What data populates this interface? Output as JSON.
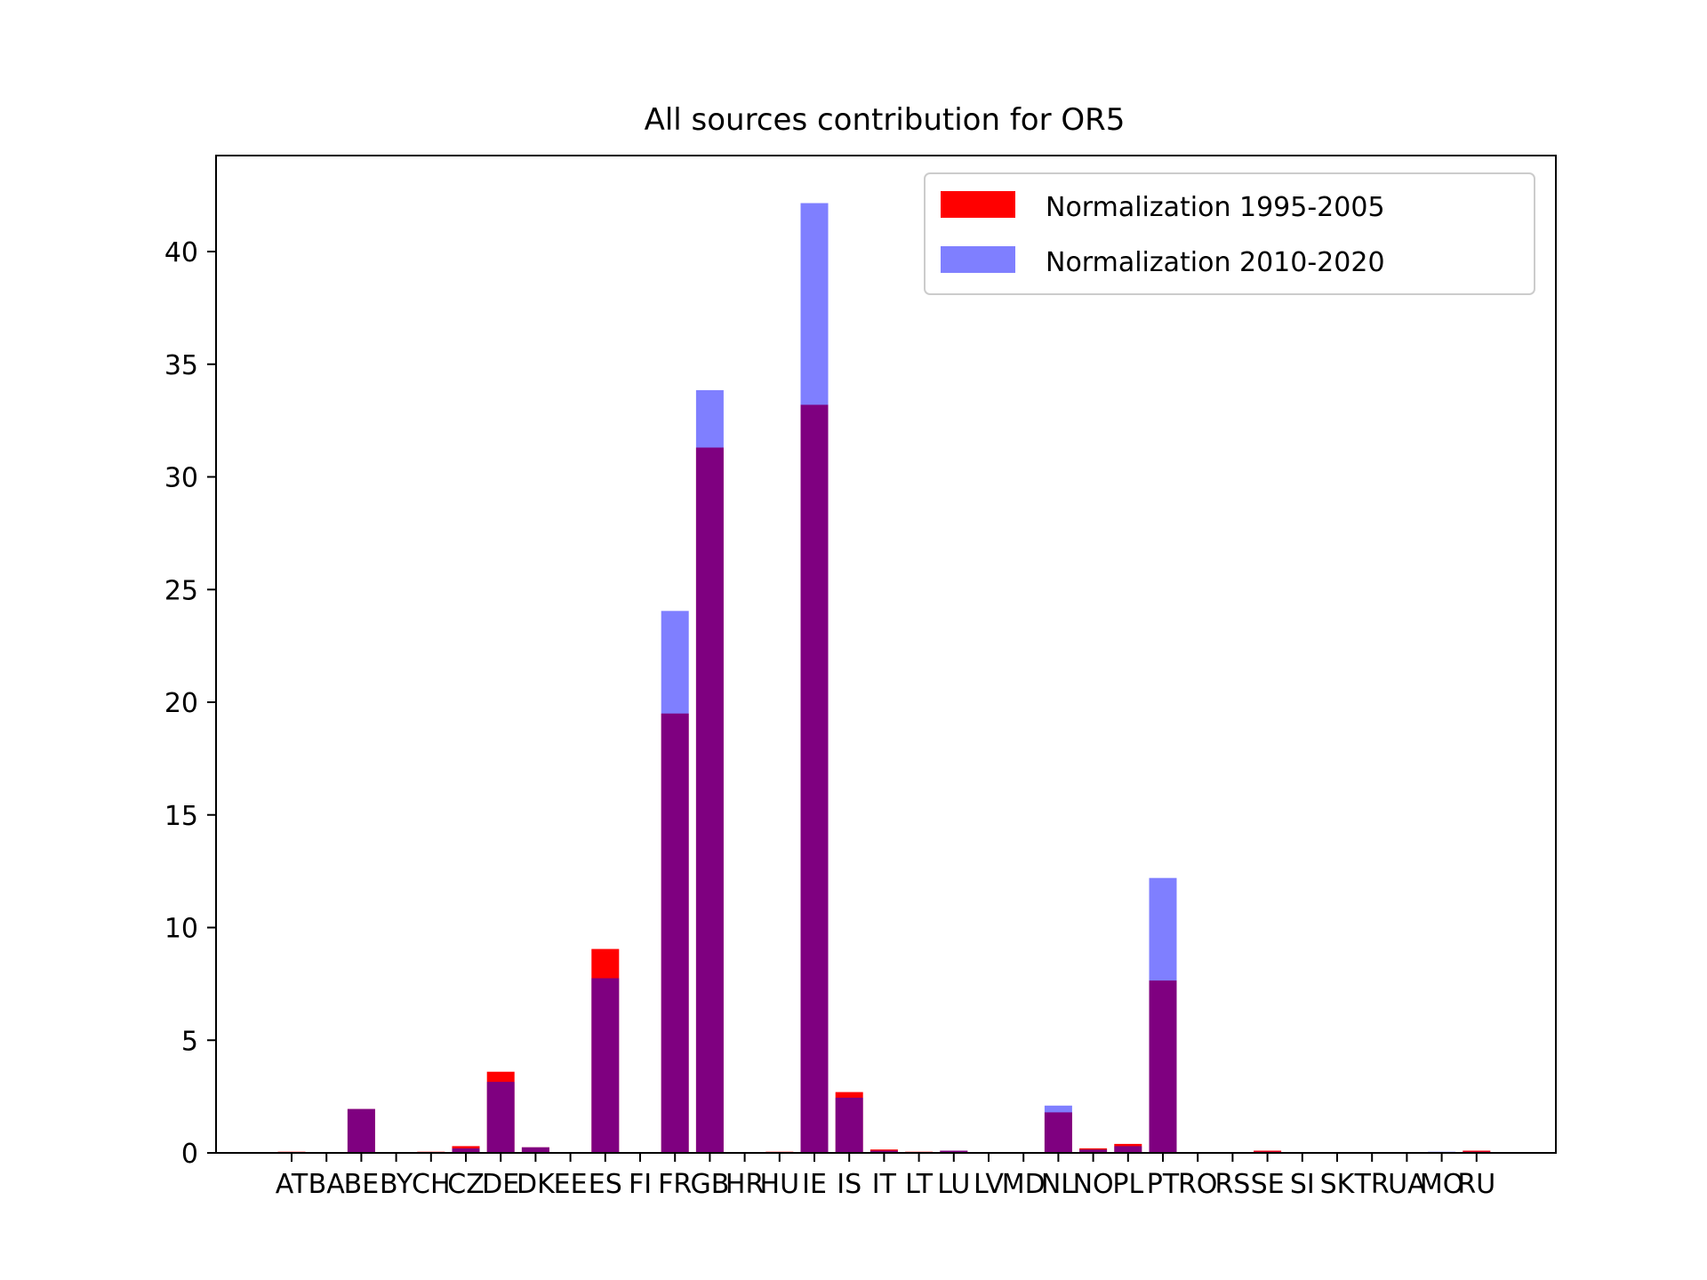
{
  "chart_data": {
    "type": "bar",
    "title": "All sources contribution for OR5",
    "xlabel": "",
    "ylabel": "",
    "ylim": [
      0,
      44
    ],
    "yticks": [
      0,
      5,
      10,
      15,
      20,
      25,
      30,
      35,
      40
    ],
    "grid": false,
    "legend_position": "top-right",
    "overlap_color": "#800080",
    "categories": [
      "AT",
      "BA",
      "BE",
      "BY",
      "CH",
      "CZ",
      "DE",
      "DK",
      "EE",
      "ES",
      "FI",
      "FR",
      "GB",
      "HR",
      "HU",
      "IE",
      "IS",
      "IT",
      "LT",
      "LU",
      "LV",
      "MD",
      "NL",
      "NO",
      "PL",
      "PT",
      "RO",
      "RS",
      "SE",
      "SI",
      "SK",
      "TR",
      "UA",
      "MO",
      "RU"
    ],
    "series": [
      {
        "name": "Normalization 1995-2005",
        "color": "#ff0000",
        "opacity": 1.0,
        "values": [
          0.05,
          0.0,
          1.95,
          0.0,
          0.05,
          0.3,
          3.6,
          0.25,
          0.0,
          9.05,
          0.0,
          19.5,
          31.3,
          0.0,
          0.05,
          33.2,
          2.7,
          0.15,
          0.05,
          0.1,
          0.0,
          0.0,
          1.8,
          0.2,
          0.4,
          7.65,
          0.0,
          0.0,
          0.1,
          0.0,
          0.0,
          0.0,
          0.0,
          0.0,
          0.1
        ]
      },
      {
        "name": "Normalization 2010-2020",
        "color": "#0000ff",
        "opacity": 0.5,
        "values": [
          0.03,
          0.0,
          1.95,
          0.0,
          0.03,
          0.2,
          3.15,
          0.25,
          0.0,
          7.75,
          0.0,
          24.05,
          33.85,
          0.0,
          0.03,
          42.15,
          2.45,
          0.1,
          0.03,
          0.1,
          0.0,
          0.0,
          2.1,
          0.15,
          0.3,
          12.2,
          0.0,
          0.0,
          0.05,
          0.0,
          0.0,
          0.0,
          0.0,
          0.05,
          0.05
        ]
      }
    ]
  }
}
